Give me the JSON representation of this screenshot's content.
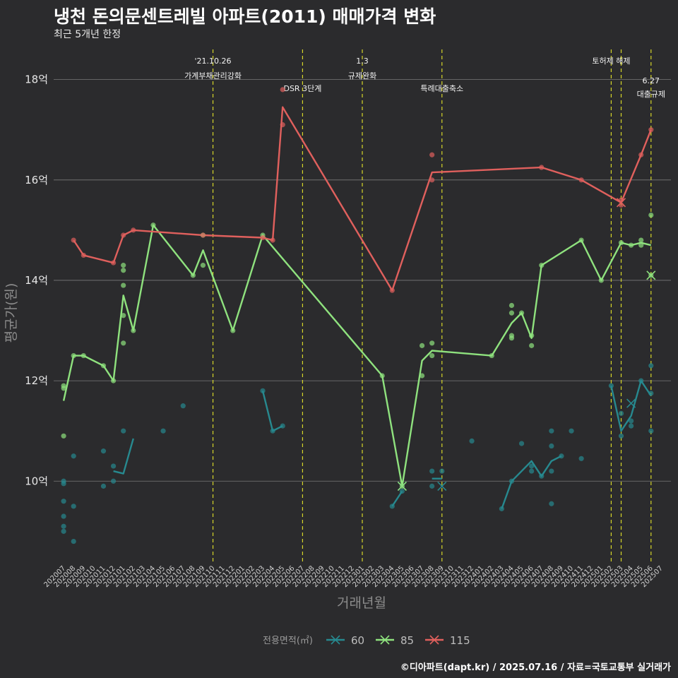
{
  "header": {
    "title": "냉천 돈의문센트레빌 아파트(2011) 매매가격 변화",
    "subtitle": "최근 5개년 한정",
    "credit": "©디아파트(dapt.kr) / 2025.07.16 / 자료=국토교통부 실거래가"
  },
  "chart_data": {
    "type": "line",
    "xlabel": "거래년월",
    "ylabel": "평균가(원)",
    "ylim": [
      8.4,
      18.6
    ],
    "y_ticks": [
      {
        "v": 10,
        "label": "10억"
      },
      {
        "v": 12,
        "label": "12억"
      },
      {
        "v": 14,
        "label": "14억"
      },
      {
        "v": 16,
        "label": "16억"
      },
      {
        "v": 18,
        "label": "18억"
      }
    ],
    "x_categories": [
      "202007",
      "202008",
      "202009",
      "202010",
      "202011",
      "202012",
      "202101",
      "202102",
      "202103",
      "202104",
      "202105",
      "202106",
      "202107",
      "202108",
      "202109",
      "202110",
      "202111",
      "202112",
      "202201",
      "202202",
      "202203",
      "202204",
      "202205",
      "202206",
      "202207",
      "202208",
      "202209",
      "202210",
      "202211",
      "202212",
      "202301",
      "202302",
      "202303",
      "202304",
      "202305",
      "202306",
      "202307",
      "202308",
      "202309",
      "202310",
      "202311",
      "202312",
      "202401",
      "202402",
      "202403",
      "202404",
      "202405",
      "202406",
      "202407",
      "202408",
      "202409",
      "202410",
      "202411",
      "202412",
      "202501",
      "202502",
      "202503",
      "202504",
      "202505",
      "202506",
      "202507"
    ],
    "legend_title": "전용면적(㎡)",
    "legend_position": "bottom",
    "events": [
      {
        "x": "202110",
        "lines": [
          "'21.10.26",
          "가계부채관리강화"
        ],
        "level": 0
      },
      {
        "x": "202207",
        "lines": [
          "DSR 3단계"
        ],
        "level": 1
      },
      {
        "x": "202301",
        "lines": [
          "1.3",
          "규제완화"
        ],
        "level": 0
      },
      {
        "x": "202309",
        "lines": [
          "특례대출축소"
        ],
        "level": 1
      },
      {
        "x": "202502",
        "lines": [
          "토허제 해제"
        ],
        "level": 0
      },
      {
        "x": "202503",
        "lines": [],
        "level": 0
      },
      {
        "x": "202506",
        "lines": [
          "6.27",
          "대출규제"
        ],
        "level": 2
      }
    ],
    "series": [
      {
        "name": "60",
        "color": "#27898f",
        "segments": [
          [
            [
              "202007",
              11.6
            ]
          ],
          [
            [
              "202012",
              10.2
            ],
            [
              "202101",
              10.15
            ],
            [
              "202102",
              10.85
            ]
          ],
          [
            [
              "202203",
              11.8
            ],
            [
              "202204",
              11.0
            ],
            [
              "202205",
              11.1
            ]
          ],
          [
            [
              "202304",
              9.5
            ],
            [
              "202305",
              9.8
            ]
          ],
          [
            [
              "202308",
              10.05
            ],
            [
              "202309",
              10.05
            ]
          ],
          [
            [
              "202403",
              9.45
            ],
            [
              "202404",
              10.0
            ],
            [
              "202406",
              10.4
            ],
            [
              "202407",
              10.1
            ],
            [
              "202408",
              10.4
            ],
            [
              "202409",
              10.5
            ]
          ],
          [
            [
              "202502",
              11.9
            ],
            [
              "202503",
              11.0
            ],
            [
              "202504",
              11.3
            ],
            [
              "202505",
              12.0
            ],
            [
              "202506",
              11.7
            ]
          ]
        ],
        "points": [
          [
            "202007",
            10.0
          ],
          [
            "202007",
            9.95
          ],
          [
            "202007",
            9.6
          ],
          [
            "202007",
            9.3
          ],
          [
            "202007",
            9.1
          ],
          [
            "202007",
            9.0
          ],
          [
            "202008",
            10.5
          ],
          [
            "202008",
            9.5
          ],
          [
            "202008",
            8.8
          ],
          [
            "202011",
            10.6
          ],
          [
            "202011",
            9.9
          ],
          [
            "202012",
            10.3
          ],
          [
            "202012",
            10.0
          ],
          [
            "202101",
            11.0
          ],
          [
            "202105",
            11.0
          ],
          [
            "202107",
            11.5
          ],
          [
            "202203",
            11.8
          ],
          [
            "202204",
            11.0
          ],
          [
            "202205",
            11.1
          ],
          [
            "202304",
            9.5
          ],
          [
            "202305",
            9.8
          ],
          [
            "202308",
            10.2
          ],
          [
            "202308",
            9.9
          ],
          [
            "202309",
            10.2
          ],
          [
            "202312",
            10.8
          ],
          [
            "202403",
            9.45
          ],
          [
            "202404",
            10.0
          ],
          [
            "202405",
            10.75
          ],
          [
            "202406",
            10.2
          ],
          [
            "202406",
            10.3
          ],
          [
            "202407",
            10.1
          ],
          [
            "202408",
            11.0
          ],
          [
            "202408",
            10.7
          ],
          [
            "202408",
            10.2
          ],
          [
            "202408",
            9.55
          ],
          [
            "202409",
            10.5
          ],
          [
            "202410",
            11.0
          ],
          [
            "202411",
            10.45
          ],
          [
            "202502",
            11.9
          ],
          [
            "202503",
            11.35
          ],
          [
            "202503",
            10.9
          ],
          [
            "202504",
            11.2
          ],
          [
            "202504",
            11.1
          ],
          [
            "202505",
            12.0
          ],
          [
            "202506",
            12.3
          ],
          [
            "202506",
            11.75
          ],
          [
            "202506",
            11.0
          ]
        ],
        "markers": [
          [
            "202305",
            9.9
          ],
          [
            "202309",
            9.9
          ],
          [
            "202504",
            11.55
          ]
        ]
      },
      {
        "name": "85",
        "color": "#8fe27e",
        "segments": [
          [
            [
              "202007",
              11.6
            ],
            [
              "202008",
              12.5
            ],
            [
              "202009",
              12.5
            ],
            [
              "202011",
              12.3
            ],
            [
              "202012",
              12.0
            ],
            [
              "202101",
              13.7
            ],
            [
              "202102",
              13.0
            ],
            [
              "202104",
              15.1
            ],
            [
              "202108",
              14.1
            ],
            [
              "202109",
              14.6
            ],
            [
              "202112",
              13.0
            ],
            [
              "202203",
              14.9
            ],
            [
              "202303",
              12.1
            ],
            [
              "202305",
              9.9
            ],
            [
              "202307",
              12.4
            ],
            [
              "202308",
              12.6
            ],
            [
              "202402",
              12.5
            ],
            [
              "202404",
              13.15
            ],
            [
              "202405",
              13.35
            ],
            [
              "202406",
              12.85
            ],
            [
              "202407",
              14.3
            ],
            [
              "202411",
              14.8
            ],
            [
              "202501",
              14.0
            ],
            [
              "202503",
              14.75
            ],
            [
              "202504",
              14.7
            ],
            [
              "202505",
              14.75
            ],
            [
              "202506",
              14.7
            ]
          ]
        ],
        "points": [
          [
            "202007",
            11.9
          ],
          [
            "202007",
            11.85
          ],
          [
            "202007",
            10.9
          ],
          [
            "202008",
            12.5
          ],
          [
            "202009",
            12.5
          ],
          [
            "202011",
            12.3
          ],
          [
            "202012",
            12.0
          ],
          [
            "202101",
            14.3
          ],
          [
            "202101",
            14.2
          ],
          [
            "202101",
            13.9
          ],
          [
            "202101",
            13.3
          ],
          [
            "202101",
            12.75
          ],
          [
            "202102",
            13.0
          ],
          [
            "202104",
            15.1
          ],
          [
            "202108",
            14.1
          ],
          [
            "202109",
            14.9
          ],
          [
            "202109",
            14.3
          ],
          [
            "202112",
            13.0
          ],
          [
            "202203",
            14.9
          ],
          [
            "202303",
            12.1
          ],
          [
            "202305",
            9.9
          ],
          [
            "202307",
            12.7
          ],
          [
            "202307",
            12.1
          ],
          [
            "202308",
            12.75
          ],
          [
            "202308",
            12.5
          ],
          [
            "202402",
            12.5
          ],
          [
            "202404",
            13.5
          ],
          [
            "202404",
            13.35
          ],
          [
            "202404",
            12.9
          ],
          [
            "202404",
            12.85
          ],
          [
            "202405",
            13.35
          ],
          [
            "202406",
            12.9
          ],
          [
            "202406",
            12.7
          ],
          [
            "202407",
            14.3
          ],
          [
            "202411",
            14.8
          ],
          [
            "202501",
            14.0
          ],
          [
            "202503",
            14.75
          ],
          [
            "202504",
            14.7
          ],
          [
            "202505",
            14.8
          ],
          [
            "202505",
            14.7
          ],
          [
            "202506",
            15.3
          ],
          [
            "202506",
            14.1
          ]
        ],
        "markers": [
          [
            "202305",
            9.9
          ],
          [
            "202506",
            14.1
          ]
        ]
      },
      {
        "name": "115",
        "color": "#e0605d",
        "segments": [
          [
            [
              "202008",
              14.8
            ],
            [
              "202009",
              14.5
            ],
            [
              "202012",
              14.35
            ],
            [
              "202101",
              14.9
            ],
            [
              "202102",
              15.0
            ],
            [
              "202109",
              14.9
            ],
            [
              "202203",
              14.85
            ],
            [
              "202204",
              14.8
            ],
            [
              "202205",
              17.45
            ],
            [
              "202304",
              13.8
            ],
            [
              "202308",
              16.15
            ],
            [
              "202407",
              16.25
            ],
            [
              "202411",
              16.0
            ],
            [
              "202503",
              15.55
            ],
            [
              "202505",
              16.5
            ],
            [
              "202506",
              17.0
            ]
          ]
        ],
        "points": [
          [
            "202008",
            14.8
          ],
          [
            "202009",
            14.5
          ],
          [
            "202012",
            14.35
          ],
          [
            "202101",
            14.9
          ],
          [
            "202102",
            15.0
          ],
          [
            "202109",
            14.9
          ],
          [
            "202203",
            14.85
          ],
          [
            "202204",
            14.8
          ],
          [
            "202205",
            17.8
          ],
          [
            "202205",
            17.1
          ],
          [
            "202304",
            13.8
          ],
          [
            "202308",
            16.5
          ],
          [
            "202308",
            16.0
          ],
          [
            "202407",
            16.25
          ],
          [
            "202411",
            16.0
          ],
          [
            "202503",
            15.6
          ],
          [
            "202503",
            15.5
          ],
          [
            "202505",
            16.5
          ],
          [
            "202506",
            17.0
          ]
        ],
        "markers": [
          [
            "202503",
            15.55
          ]
        ]
      }
    ]
  }
}
